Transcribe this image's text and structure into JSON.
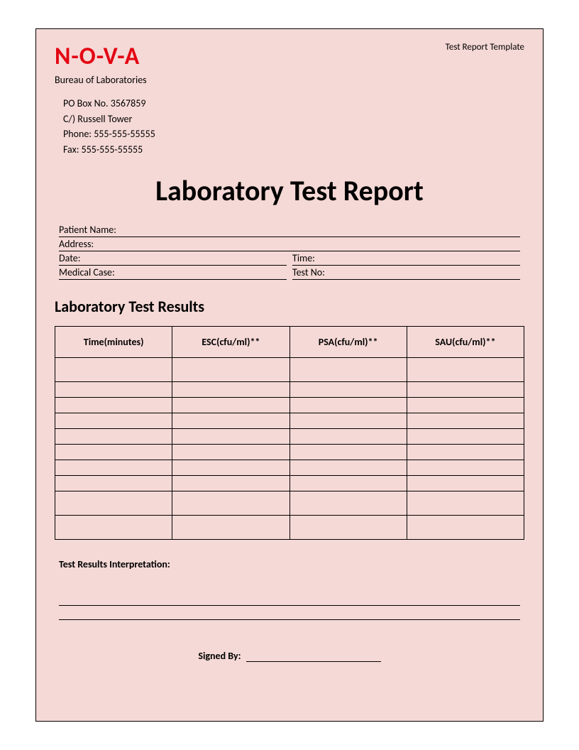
{
  "header": {
    "logo": "N-O-V-A",
    "template_label": "Test Report Template",
    "bureau": "Bureau of Laboratories",
    "contact": {
      "po_box": "PO Box No. 3567859",
      "co": "C/) Russell Tower",
      "phone": "Phone: 555-555-55555",
      "fax": "Fax: 555-555-55555"
    }
  },
  "main_title": "Laboratory Test Report",
  "fields": {
    "patient_name_label": "Patient Name:",
    "address_label": "Address:",
    "date_label": "Date:",
    "time_label": "Time:",
    "medical_case_label": "Medical Case:",
    "test_no_label": "Test No:"
  },
  "results": {
    "section_title": "Laboratory Test Results",
    "columns": [
      "Time(minutes)",
      "ESC(cfu/ml)**",
      "PSA(cfu/ml)**",
      "SAU(cfu/ml)**"
    ],
    "column_widths": [
      "25%",
      "25%",
      "25%",
      "25%"
    ],
    "row_count": 10,
    "tall_rows": [
      0,
      8,
      9
    ],
    "border_color": "#000000",
    "background_color": "#f5d9d6",
    "header_fontsize": 14,
    "header_fontweight": "bold"
  },
  "interpretation": {
    "label": "Test Results Interpretation:",
    "line_count": 2
  },
  "signature": {
    "label": "Signed By:"
  },
  "colors": {
    "page_bg": "#f5d9d6",
    "logo_red": "#e30613",
    "text": "#000000",
    "border": "#000000",
    "outer_bg": "#ffffff"
  }
}
